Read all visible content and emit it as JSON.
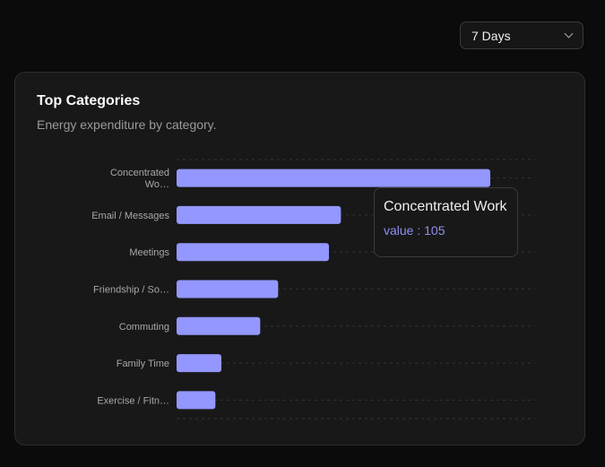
{
  "period_select": {
    "value": "7 Days",
    "icon": "chevron-down-icon"
  },
  "card": {
    "title": "Top Categories",
    "subtitle": "Energy expenditure by category."
  },
  "tooltip": {
    "name": "Concentrated Work",
    "label": "value : 105"
  },
  "chart_data": {
    "type": "bar",
    "orientation": "horizontal",
    "categories": [
      "Concentrated Wo…",
      "Email / Messages",
      "Meetings",
      "Friendship / So…",
      "Commuting",
      "Family Time",
      "Exercise / Fitn…"
    ],
    "values": [
      105,
      55,
      51,
      34,
      28,
      15,
      13
    ],
    "xlim": [
      0,
      120
    ],
    "grid": "horizontal dashed",
    "bar_color": "#9397ff"
  }
}
